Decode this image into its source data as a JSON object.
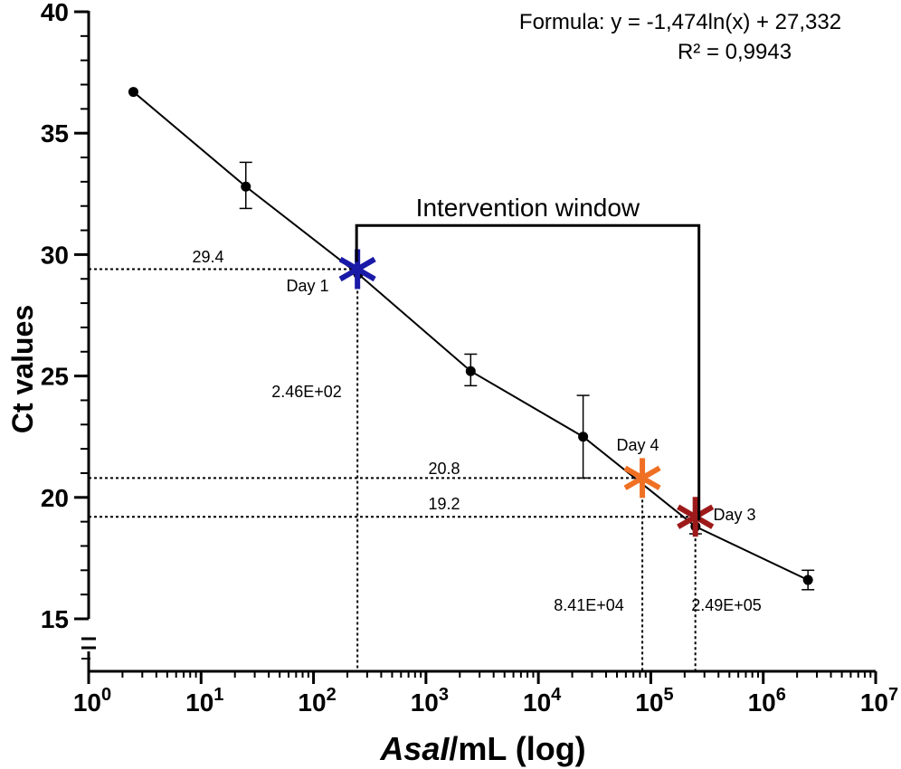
{
  "chart_data": {
    "type": "scatter",
    "xlabel_italic": "AsaI",
    "xlabel_rest": "/mL (log)",
    "ylabel": "Ct values",
    "x_scale": "log",
    "xlim": [
      1,
      10000000
    ],
    "ylim": [
      15,
      40
    ],
    "y_axis_break": true,
    "x_ticks": [
      {
        "base": "10",
        "exp": "0",
        "value": 1
      },
      {
        "base": "10",
        "exp": "1",
        "value": 10
      },
      {
        "base": "10",
        "exp": "2",
        "value": 100
      },
      {
        "base": "10",
        "exp": "3",
        "value": 1000
      },
      {
        "base": "10",
        "exp": "4",
        "value": 10000
      },
      {
        "base": "10",
        "exp": "5",
        "value": 100000
      },
      {
        "base": "10",
        "exp": "6",
        "value": 1000000
      },
      {
        "base": "10",
        "exp": "7",
        "value": 10000000
      }
    ],
    "y_ticks": [
      "15",
      "20",
      "25",
      "30",
      "35",
      "40"
    ],
    "formula_text": "Formula: y = -1,474ln(x) + 27,332",
    "r2_text": "R² = 0,9943",
    "points": [
      {
        "x": 2.5,
        "y": 36.7,
        "err_low": 36.7,
        "err_high": 36.7
      },
      {
        "x": 25,
        "y": 32.8,
        "err_low": 31.9,
        "err_high": 33.8
      },
      {
        "x": 250,
        "y": 29.2,
        "err_low": 29.2,
        "err_high": 29.2
      },
      {
        "x": 2500,
        "y": 25.2,
        "err_low": 24.6,
        "err_high": 25.9
      },
      {
        "x": 25000,
        "y": 22.5,
        "err_low": 20.8,
        "err_high": 24.2
      },
      {
        "x": 250000,
        "y": 18.8,
        "err_low": 18.5,
        "err_high": 19.1
      },
      {
        "x": 2500000,
        "y": 16.6,
        "err_low": 16.2,
        "err_high": 17.0
      }
    ],
    "markers": [
      {
        "label": "Day 1",
        "x": 246,
        "y": 29.4,
        "color": "#1a1aa8",
        "value_label": "29.4",
        "x_value_label": "2.46E+02"
      },
      {
        "label": "Day 4",
        "x": 84100,
        "y": 20.8,
        "color": "#f07023",
        "value_label": "20.8",
        "x_value_label": "8.41E+04"
      },
      {
        "label": "Day 3",
        "x": 249000,
        "y": 19.2,
        "color": "#9e1a1a",
        "value_label": "19.2",
        "x_value_label": "2.49E+05"
      }
    ],
    "intervention_window": {
      "label": "Intervention window",
      "x_start": 246,
      "x_end": 249000,
      "y_top": 31.2
    }
  }
}
